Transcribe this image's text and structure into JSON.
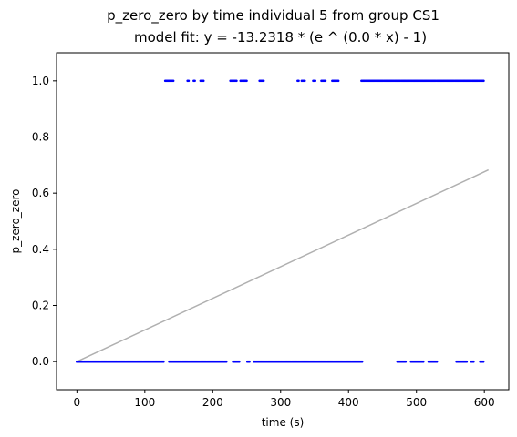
{
  "chart_data": {
    "type": "scatter",
    "title": "p_zero_zero by time individual 5 from group CS1",
    "subtitle": "model fit: y = -13.2318 * (e ^ (0.0 * x) - 1)",
    "xlabel": "time (s)",
    "ylabel": "p_zero_zero",
    "xlim": [
      -30,
      636
    ],
    "ylim": [
      -0.1,
      1.1
    ],
    "xticks": [
      0,
      100,
      200,
      300,
      400,
      500,
      600
    ],
    "xtick_labels": [
      "0",
      "100",
      "200",
      "300",
      "400",
      "500",
      "600"
    ],
    "yticks": [
      0.0,
      0.2,
      0.4,
      0.6,
      0.8,
      1.0
    ],
    "ytick_labels": [
      "0.0",
      "0.2",
      "0.4",
      "0.6",
      "0.8",
      "1.0"
    ],
    "grid": false,
    "series": [
      {
        "marker": "dot",
        "color": "#0000ff",
        "segments": [
          {
            "y": 1,
            "x_ranges": [
              [
                130,
                142
              ],
              [
                163,
                165
              ],
              [
                172,
                174
              ],
              [
                182,
                187
              ],
              [
                226,
                236
              ],
              [
                241,
                250
              ],
              [
                269,
                275
              ],
              [
                325,
                327
              ],
              [
                331,
                336
              ],
              [
                348,
                351
              ],
              [
                360,
                366
              ],
              [
                376,
                385
              ],
              [
                419,
                599
              ]
            ]
          },
          {
            "y": 0,
            "x_ranges": [
              [
                0,
                128
              ],
              [
                136,
                221
              ],
              [
                230,
                239
              ],
              [
                251,
                254
              ],
              [
                261,
                420
              ],
              [
                472,
                484
              ],
              [
                492,
                511
              ],
              [
                518,
                531
              ],
              [
                559,
                574
              ],
              [
                581,
                584
              ],
              [
                594,
                599
              ]
            ]
          }
        ]
      },
      {
        "kind": "fit_line",
        "color": "#b0b0b0",
        "points": [
          [
            0,
            0.0
          ],
          [
            606,
            0.683
          ]
        ]
      }
    ]
  }
}
